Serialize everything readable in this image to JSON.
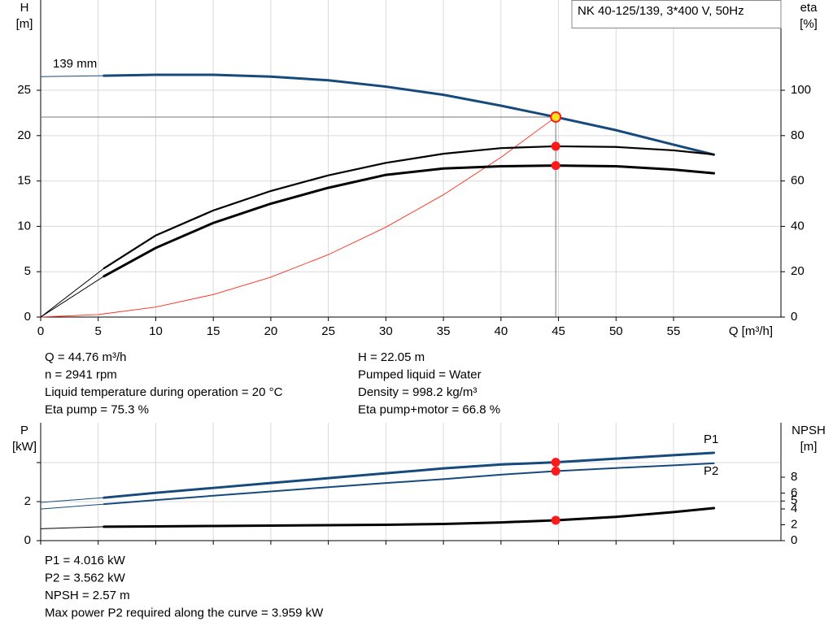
{
  "chart_data": [
    {
      "type": "line",
      "title": "NK 40-125/139, 3*400 V, 50Hz",
      "ylabel": "H",
      "yunit": "[m]",
      "y2label": "eta",
      "y2unit": "[%]",
      "xlabel": "Q [m³/h]",
      "xlim": [
        0,
        64.33
      ],
      "xticks": [
        0,
        5,
        10,
        15,
        20,
        25,
        30,
        35,
        40,
        45,
        50,
        55
      ],
      "ylim": [
        0,
        34.95
      ],
      "yticks": [
        0,
        5,
        10,
        15,
        20,
        25
      ],
      "y2lim": [
        0,
        139.8
      ],
      "y2ticks": [
        0,
        20,
        40,
        60,
        80,
        100
      ],
      "grid": true,
      "x": [
        0,
        5.5,
        10,
        15,
        20,
        25,
        30,
        35,
        40,
        44.76,
        50,
        55,
        58.5
      ],
      "series": [
        {
          "name": "139 mm",
          "color": "#174a7c",
          "values": [
            26.5,
            26.6,
            26.7,
            26.7,
            26.5,
            26.1,
            25.4,
            24.5,
            23.3,
            22.05,
            20.6,
            19.0,
            17.9
          ]
        },
        {
          "color": "#000000",
          "axis": "y2",
          "values": [
            0,
            21.5,
            36,
            47,
            55.6,
            62.5,
            68,
            72,
            74.5,
            75.3,
            75,
            73.5,
            71.7
          ]
        },
        {
          "color": "#000000",
          "axis": "y2",
          "values": [
            0,
            18,
            30.5,
            41.5,
            50,
            57,
            62.7,
            65.5,
            66.5,
            66.8,
            66.5,
            65,
            63.4
          ]
        }
      ],
      "system_curve": {
        "color": "#ff2a1a",
        "x": [
          0,
          5,
          10,
          15,
          20,
          25,
          30,
          35,
          40,
          44.76
        ],
        "values": [
          0,
          0.275,
          1.1,
          2.48,
          4.4,
          6.88,
          9.91,
          13.48,
          17.61,
          22.05
        ]
      },
      "operating_point": {
        "x": 44.76,
        "y": 22.05
      }
    },
    {
      "type": "line",
      "ylabel": "P",
      "yunit": "[kW]",
      "y2label": "NPSH",
      "y2unit": "[m]",
      "xlim": [
        0,
        64.33
      ],
      "xticks": [
        0,
        5,
        10,
        15,
        20,
        25,
        30,
        35,
        40,
        45,
        50,
        55
      ],
      "xtick_labels": false,
      "ylim": [
        0,
        6.04
      ],
      "yticks": [
        0,
        2,
        {
          "value": 4,
          "label": null
        }
      ],
      "y2lim": [
        0,
        14.87
      ],
      "y2ticks": [
        0,
        2,
        4,
        5,
        6,
        8
      ],
      "grid": true,
      "x": [
        0,
        5.5,
        10,
        15,
        20,
        25,
        30,
        35,
        40,
        44.76,
        50,
        55,
        58.5
      ],
      "series": [
        {
          "name": "P1",
          "color": "#174a7c",
          "values": [
            1.96,
            2.2,
            2.45,
            2.7,
            2.95,
            3.2,
            3.45,
            3.7,
            3.9,
            4.016,
            4.2,
            4.38,
            4.5
          ]
        },
        {
          "name": "P2",
          "color": "#174a7c",
          "values": [
            1.62,
            1.87,
            2.08,
            2.3,
            2.52,
            2.74,
            2.95,
            3.15,
            3.38,
            3.562,
            3.72,
            3.86,
            3.96
          ]
        },
        {
          "color": "#000000",
          "axis": "y2",
          "values": [
            1.5,
            1.75,
            1.8,
            1.85,
            1.9,
            1.95,
            2.0,
            2.1,
            2.3,
            2.57,
            3.0,
            3.6,
            4.1
          ]
        }
      ]
    }
  ],
  "results": {
    "left": [
      "Q = 44.76 m³/h",
      "n = 2941 rpm",
      "Liquid temperature during operation = 20 °C",
      "Eta pump = 75.3 %"
    ],
    "right": [
      "H = 22.05 m",
      "Pumped liquid = Water",
      "Density = 998.2 kg/m³",
      "Eta pump+motor = 66.8 %"
    ],
    "power": [
      "P1 = 4.016 kW",
      "P2 = 3.562 kW",
      "NPSH = 2.57 m",
      "Max power P2 required along the curve = 3.959 kW"
    ]
  }
}
